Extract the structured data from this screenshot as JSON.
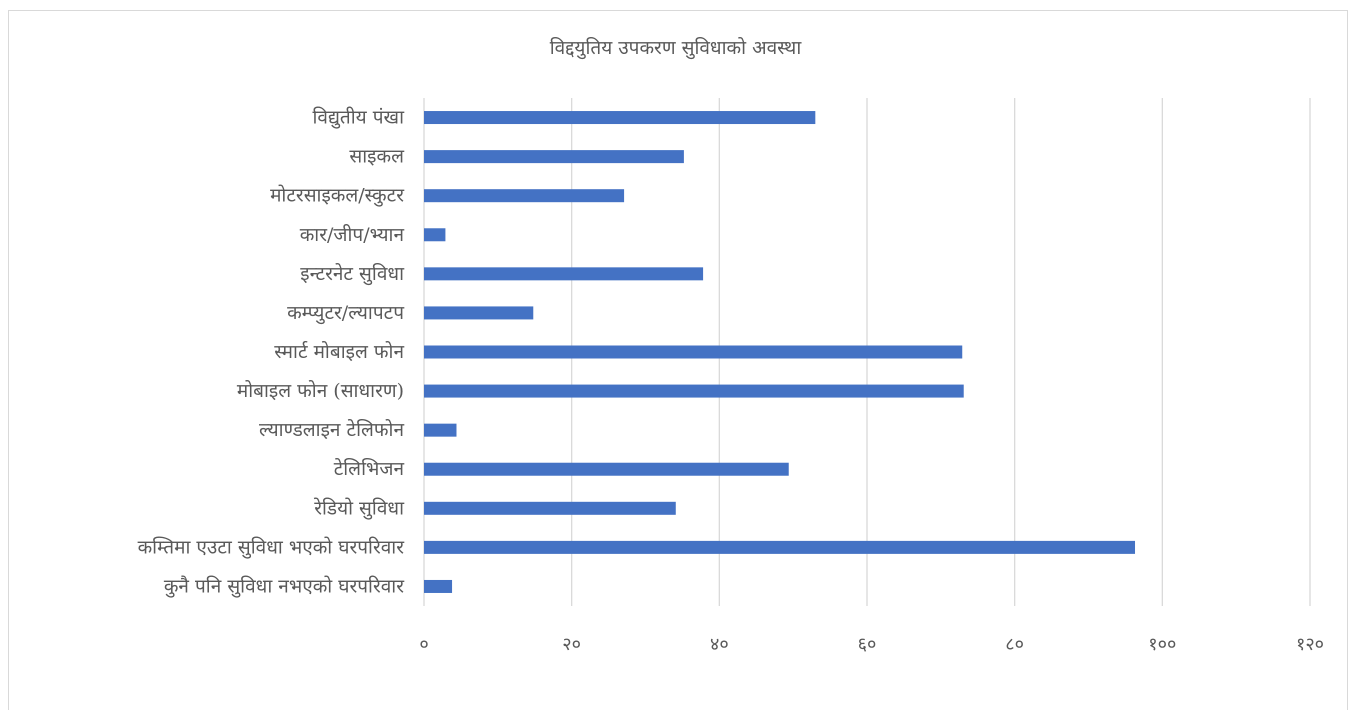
{
  "chart_data": {
    "type": "bar",
    "orientation": "horizontal",
    "title": "विद्दयुतिय उपकरण सुविधाको अवस्था",
    "categories": [
      "विद्युतीय पंखा",
      "साइकल",
      "मोटरसाइकल/स्कुटर",
      "कार/जीप/भ्यान",
      "इन्टरनेट सुविधा",
      "कम्प्युटर/ल्यापटप",
      "स्मार्ट मोबाइल फोन",
      "मोबाइल फोन (साधारण)",
      "ल्याण्डलाइन टेलिफोन",
      "टेलिभिजन",
      "रेडियो सुविधा",
      "कम्तिमा एउटा सुविधा भएको घरपरिवार",
      "कुनै पनि सुविधा नभएको घरपरिवार"
    ],
    "values": [
      53,
      35.2,
      27.1,
      2.9,
      37.8,
      14.8,
      72.9,
      73.1,
      4.4,
      49.4,
      34.1,
      96.3,
      3.8
    ],
    "xlim": [
      0,
      120
    ],
    "xticks": [
      0,
      20,
      40,
      60,
      80,
      100,
      120
    ],
    "xtick_labels": [
      "०",
      "२०",
      "४०",
      "६०",
      "८०",
      "१००",
      "१२०"
    ],
    "grid": "vertical",
    "legend": "none",
    "bar_color": "#4472c4",
    "grid_color": "#d9d9d9",
    "text_color": "#595959"
  }
}
